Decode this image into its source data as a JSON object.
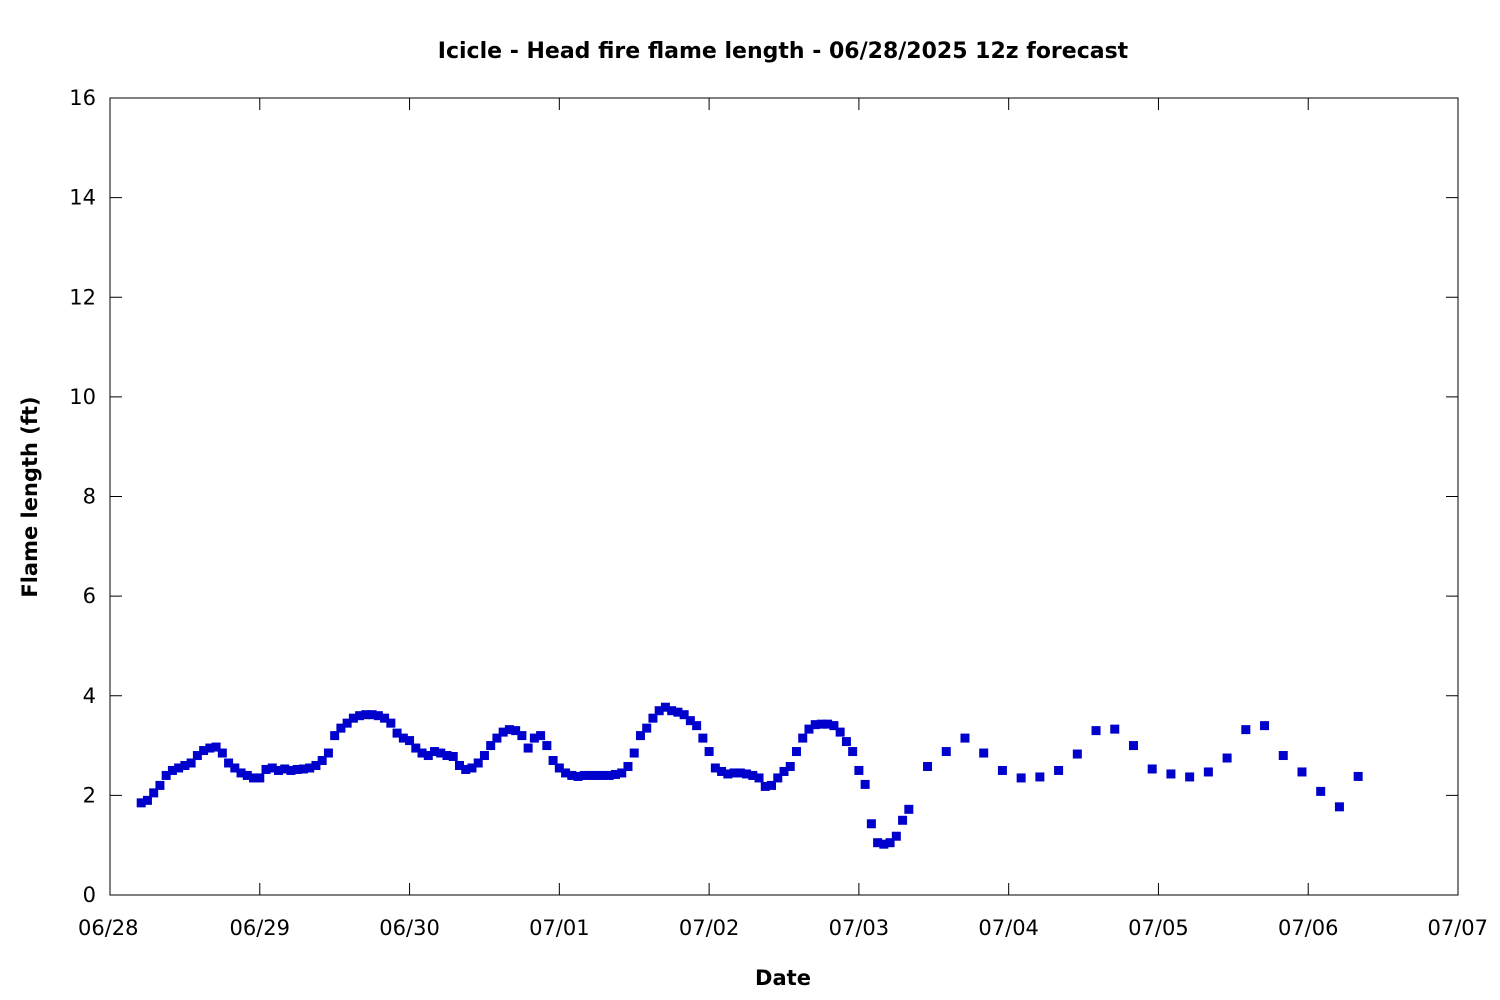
{
  "chart_data": {
    "type": "scatter",
    "title": "Icicle - Head fire flame length - 06/28/2025 12z forecast",
    "xlabel": "Date",
    "ylabel": "Flame length (ft)",
    "x_ticks": [
      "06/28",
      "06/29",
      "06/30",
      "07/01",
      "07/02",
      "07/03",
      "07/04",
      "07/05",
      "07/06",
      "07/07"
    ],
    "y_ticks": [
      0,
      2,
      4,
      6,
      8,
      10,
      12,
      14,
      16
    ],
    "xlim": [
      "2025-06-28T00:00",
      "2025-07-07T00:00"
    ],
    "ylim": [
      0,
      16
    ],
    "grid": false,
    "marker_color": "#0000cc",
    "marker": "square",
    "series": [
      {
        "points": [
          [
            "2025-06-28T05:00",
            1.85
          ],
          [
            "2025-06-28T06:00",
            1.9
          ],
          [
            "2025-06-28T07:00",
            2.05
          ],
          [
            "2025-06-28T08:00",
            2.2
          ],
          [
            "2025-06-28T09:00",
            2.4
          ],
          [
            "2025-06-28T10:00",
            2.5
          ],
          [
            "2025-06-28T11:00",
            2.55
          ],
          [
            "2025-06-28T12:00",
            2.6
          ],
          [
            "2025-06-28T13:00",
            2.65
          ],
          [
            "2025-06-28T14:00",
            2.8
          ],
          [
            "2025-06-28T15:00",
            2.9
          ],
          [
            "2025-06-28T16:00",
            2.95
          ],
          [
            "2025-06-28T17:00",
            2.97
          ],
          [
            "2025-06-28T18:00",
            2.85
          ],
          [
            "2025-06-28T19:00",
            2.65
          ],
          [
            "2025-06-28T20:00",
            2.55
          ],
          [
            "2025-06-28T21:00",
            2.45
          ],
          [
            "2025-06-28T22:00",
            2.4
          ],
          [
            "2025-06-28T23:00",
            2.35
          ],
          [
            "2025-06-29T00:00",
            2.35
          ],
          [
            "2025-06-29T01:00",
            2.52
          ],
          [
            "2025-06-29T02:00",
            2.55
          ],
          [
            "2025-06-29T03:00",
            2.5
          ],
          [
            "2025-06-29T04:00",
            2.53
          ],
          [
            "2025-06-29T05:00",
            2.5
          ],
          [
            "2025-06-29T06:00",
            2.52
          ],
          [
            "2025-06-29T07:00",
            2.53
          ],
          [
            "2025-06-29T08:00",
            2.55
          ],
          [
            "2025-06-29T09:00",
            2.6
          ],
          [
            "2025-06-29T10:00",
            2.7
          ],
          [
            "2025-06-29T11:00",
            2.85
          ],
          [
            "2025-06-29T12:00",
            3.2
          ],
          [
            "2025-06-29T13:00",
            3.35
          ],
          [
            "2025-06-29T14:00",
            3.45
          ],
          [
            "2025-06-29T15:00",
            3.55
          ],
          [
            "2025-06-29T16:00",
            3.6
          ],
          [
            "2025-06-29T17:00",
            3.62
          ],
          [
            "2025-06-29T18:00",
            3.62
          ],
          [
            "2025-06-29T19:00",
            3.6
          ],
          [
            "2025-06-29T20:00",
            3.55
          ],
          [
            "2025-06-29T21:00",
            3.45
          ],
          [
            "2025-06-29T22:00",
            3.25
          ],
          [
            "2025-06-29T23:00",
            3.15
          ],
          [
            "2025-06-30T00:00",
            3.1
          ],
          [
            "2025-06-30T01:00",
            2.95
          ],
          [
            "2025-06-30T02:00",
            2.85
          ],
          [
            "2025-06-30T03:00",
            2.8
          ],
          [
            "2025-06-30T04:00",
            2.88
          ],
          [
            "2025-06-30T05:00",
            2.85
          ],
          [
            "2025-06-30T06:00",
            2.8
          ],
          [
            "2025-06-30T07:00",
            2.78
          ],
          [
            "2025-06-30T08:00",
            2.6
          ],
          [
            "2025-06-30T09:00",
            2.52
          ],
          [
            "2025-06-30T10:00",
            2.55
          ],
          [
            "2025-06-30T11:00",
            2.65
          ],
          [
            "2025-06-30T12:00",
            2.8
          ],
          [
            "2025-06-30T13:00",
            3.0
          ],
          [
            "2025-06-30T14:00",
            3.15
          ],
          [
            "2025-06-30T15:00",
            3.27
          ],
          [
            "2025-06-30T16:00",
            3.32
          ],
          [
            "2025-06-30T17:00",
            3.3
          ],
          [
            "2025-06-30T18:00",
            3.2
          ],
          [
            "2025-06-30T19:00",
            2.95
          ],
          [
            "2025-06-30T20:00",
            3.15
          ],
          [
            "2025-06-30T21:00",
            3.2
          ],
          [
            "2025-06-30T22:00",
            3.0
          ],
          [
            "2025-06-30T23:00",
            2.7
          ],
          [
            "2025-07-01T00:00",
            2.55
          ],
          [
            "2025-07-01T01:00",
            2.45
          ],
          [
            "2025-07-01T02:00",
            2.4
          ],
          [
            "2025-07-01T03:00",
            2.38
          ],
          [
            "2025-07-01T04:00",
            2.4
          ],
          [
            "2025-07-01T05:00",
            2.4
          ],
          [
            "2025-07-01T06:00",
            2.4
          ],
          [
            "2025-07-01T07:00",
            2.4
          ],
          [
            "2025-07-01T08:00",
            2.4
          ],
          [
            "2025-07-01T09:00",
            2.42
          ],
          [
            "2025-07-01T10:00",
            2.45
          ],
          [
            "2025-07-01T11:00",
            2.58
          ],
          [
            "2025-07-01T12:00",
            2.85
          ],
          [
            "2025-07-01T13:00",
            3.2
          ],
          [
            "2025-07-01T14:00",
            3.35
          ],
          [
            "2025-07-01T15:00",
            3.55
          ],
          [
            "2025-07-01T16:00",
            3.7
          ],
          [
            "2025-07-01T17:00",
            3.77
          ],
          [
            "2025-07-01T18:00",
            3.7
          ],
          [
            "2025-07-01T19:00",
            3.67
          ],
          [
            "2025-07-01T20:00",
            3.62
          ],
          [
            "2025-07-01T21:00",
            3.5
          ],
          [
            "2025-07-01T22:00",
            3.4
          ],
          [
            "2025-07-01T23:00",
            3.15
          ],
          [
            "2025-07-02T00:00",
            2.88
          ],
          [
            "2025-07-02T01:00",
            2.55
          ],
          [
            "2025-07-02T02:00",
            2.48
          ],
          [
            "2025-07-02T03:00",
            2.43
          ],
          [
            "2025-07-02T04:00",
            2.45
          ],
          [
            "2025-07-02T05:00",
            2.45
          ],
          [
            "2025-07-02T06:00",
            2.43
          ],
          [
            "2025-07-02T07:00",
            2.4
          ],
          [
            "2025-07-02T08:00",
            2.35
          ],
          [
            "2025-07-02T09:00",
            2.18
          ],
          [
            "2025-07-02T10:00",
            2.2
          ],
          [
            "2025-07-02T11:00",
            2.35
          ],
          [
            "2025-07-02T12:00",
            2.48
          ],
          [
            "2025-07-02T13:00",
            2.58
          ],
          [
            "2025-07-02T14:00",
            2.88
          ],
          [
            "2025-07-02T15:00",
            3.15
          ],
          [
            "2025-07-02T16:00",
            3.33
          ],
          [
            "2025-07-02T17:00",
            3.42
          ],
          [
            "2025-07-02T18:00",
            3.43
          ],
          [
            "2025-07-02T19:00",
            3.43
          ],
          [
            "2025-07-02T20:00",
            3.4
          ],
          [
            "2025-07-02T21:00",
            3.27
          ],
          [
            "2025-07-02T22:00",
            3.08
          ],
          [
            "2025-07-02T23:00",
            2.88
          ],
          [
            "2025-07-03T00:00",
            2.5
          ],
          [
            "2025-07-03T01:00",
            2.22
          ],
          [
            "2025-07-03T02:00",
            1.43
          ],
          [
            "2025-07-03T03:00",
            1.05
          ],
          [
            "2025-07-03T04:00",
            1.02
          ],
          [
            "2025-07-03T05:00",
            1.05
          ],
          [
            "2025-07-03T06:00",
            1.18
          ],
          [
            "2025-07-03T07:00",
            1.5
          ],
          [
            "2025-07-03T08:00",
            1.72
          ],
          [
            "2025-07-03T11:00",
            2.58
          ],
          [
            "2025-07-03T14:00",
            2.88
          ],
          [
            "2025-07-03T17:00",
            3.15
          ],
          [
            "2025-07-03T20:00",
            2.85
          ],
          [
            "2025-07-03T23:00",
            2.5
          ],
          [
            "2025-07-04T02:00",
            2.35
          ],
          [
            "2025-07-04T05:00",
            2.37
          ],
          [
            "2025-07-04T08:00",
            2.5
          ],
          [
            "2025-07-04T11:00",
            2.83
          ],
          [
            "2025-07-04T14:00",
            3.3
          ],
          [
            "2025-07-04T17:00",
            3.33
          ],
          [
            "2025-07-04T20:00",
            3.0
          ],
          [
            "2025-07-04T23:00",
            2.53
          ],
          [
            "2025-07-05T02:00",
            2.43
          ],
          [
            "2025-07-05T05:00",
            2.37
          ],
          [
            "2025-07-05T08:00",
            2.47
          ],
          [
            "2025-07-05T11:00",
            2.75
          ],
          [
            "2025-07-05T14:00",
            3.32
          ],
          [
            "2025-07-05T17:00",
            3.4
          ],
          [
            "2025-07-05T20:00",
            2.8
          ],
          [
            "2025-07-05T23:00",
            2.47
          ],
          [
            "2025-07-06T02:00",
            2.08
          ],
          [
            "2025-07-06T05:00",
            1.77
          ],
          [
            "2025-07-06T08:00",
            2.38
          ]
        ]
      }
    ]
  }
}
